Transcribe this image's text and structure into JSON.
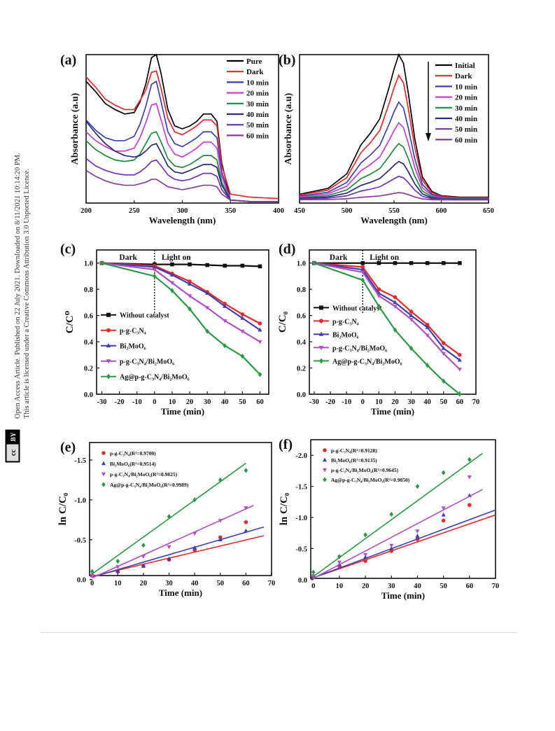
{
  "margin": {
    "line1": "Open Access Article. Published on 22 July 2021. Downloaded on 8/11/2021 10:14:20 PM.",
    "line2": "This article is licensed under a Creative Commons Attribution 3.0 Unported Licence.",
    "badge_cc": "cc",
    "badge_by": "BY"
  },
  "chart_data": [
    {
      "panel": "(a)",
      "type": "line",
      "xlabel": "Wavelength (nm)",
      "ylabel": "Absorbance (a.u)",
      "xlim": [
        200,
        400
      ],
      "xticks": [
        200,
        250,
        300,
        350,
        400
      ],
      "xtick_labels": [
        "200",
        "250",
        "300",
        "350",
        "400"
      ],
      "ylim": [
        0,
        1
      ],
      "yticks": [],
      "legend_position": "top-right",
      "series": [
        {
          "name": "Pure",
          "color": "#000000",
          "y": [
            0.82,
            0.75,
            0.67,
            0.63,
            0.6,
            0.61,
            0.68,
            0.8,
            0.98,
            1.0,
            0.87,
            0.63,
            0.52,
            0.5,
            0.52,
            0.55,
            0.6,
            0.6,
            0.55,
            0.27,
            0.02,
            0.01,
            0.01
          ]
        },
        {
          "name": "Dark",
          "color": "#e8292b",
          "y": [
            0.85,
            0.78,
            0.7,
            0.66,
            0.63,
            0.63,
            0.69,
            0.76,
            0.88,
            0.89,
            0.77,
            0.57,
            0.48,
            0.46,
            0.49,
            0.52,
            0.56,
            0.56,
            0.52,
            0.25,
            0.06,
            0.04,
            0.03
          ]
        },
        {
          "name": "10 min",
          "color": "#3b3fb5",
          "y": [
            0.56,
            0.49,
            0.44,
            0.42,
            0.42,
            0.45,
            0.53,
            0.65,
            0.8,
            0.82,
            0.68,
            0.48,
            0.4,
            0.38,
            0.41,
            0.44,
            0.48,
            0.48,
            0.44,
            0.21,
            0.02,
            0.01,
            0.01
          ]
        },
        {
          "name": "20 min",
          "color": "#c83ccf",
          "y": [
            0.48,
            0.42,
            0.38,
            0.35,
            0.35,
            0.37,
            0.44,
            0.54,
            0.66,
            0.67,
            0.56,
            0.4,
            0.33,
            0.31,
            0.34,
            0.37,
            0.41,
            0.41,
            0.37,
            0.18,
            0.02,
            0.01,
            0.01
          ]
        },
        {
          "name": "30 min",
          "color": "#1f8a3b",
          "y": [
            0.42,
            0.36,
            0.32,
            0.29,
            0.28,
            0.29,
            0.33,
            0.4,
            0.47,
            0.48,
            0.41,
            0.3,
            0.25,
            0.24,
            0.26,
            0.29,
            0.32,
            0.32,
            0.29,
            0.14,
            0.02,
            0.01,
            0.01
          ]
        },
        {
          "name": "40 min",
          "color": "#262b7a",
          "y": [
            0.55,
            0.47,
            0.4,
            0.35,
            0.32,
            0.31,
            0.32,
            0.35,
            0.39,
            0.4,
            0.34,
            0.25,
            0.21,
            0.2,
            0.22,
            0.24,
            0.26,
            0.26,
            0.24,
            0.12,
            0.02,
            0.01,
            0.01
          ]
        },
        {
          "name": "50 min",
          "color": "#6e34b7",
          "y": [
            0.3,
            0.25,
            0.22,
            0.2,
            0.19,
            0.19,
            0.21,
            0.24,
            0.28,
            0.29,
            0.25,
            0.19,
            0.16,
            0.15,
            0.16,
            0.18,
            0.2,
            0.2,
            0.18,
            0.09,
            0.02,
            0.01,
            0.01
          ]
        },
        {
          "name": "60 min",
          "color": "#8c3a9a",
          "y": [
            0.22,
            0.18,
            0.15,
            0.13,
            0.12,
            0.12,
            0.13,
            0.14,
            0.16,
            0.16,
            0.14,
            0.11,
            0.1,
            0.09,
            0.1,
            0.11,
            0.12,
            0.12,
            0.11,
            0.06,
            0.02,
            0.01,
            0.01
          ]
        }
      ],
      "x": [
        200,
        210,
        220,
        230,
        240,
        250,
        256,
        262,
        268,
        273,
        278,
        285,
        292,
        300,
        308,
        315,
        322,
        330,
        336,
        341,
        350,
        370,
        400
      ]
    },
    {
      "panel": "(b)",
      "type": "line",
      "xlabel": "Wavelength (nm)",
      "ylabel": "Absorbance (a.u)",
      "xlim": [
        450,
        650
      ],
      "xticks": [
        450,
        500,
        550,
        600,
        650
      ],
      "xtick_labels": [
        "450",
        "500",
        "550",
        "600",
        "650"
      ],
      "ylim": [
        0,
        1
      ],
      "yticks": [],
      "legend_position": "top-right",
      "series": [
        {
          "name": "Initial",
          "color": "#000000",
          "peak": 0.98
        },
        {
          "name": "Dark",
          "color": "#e8292b",
          "peak": 0.84
        },
        {
          "name": "10 min",
          "color": "#3b3fb5",
          "peak": 0.66
        },
        {
          "name": "20 min",
          "color": "#c83ccf",
          "peak": 0.52
        },
        {
          "name": "30 min",
          "color": "#1f8a3b",
          "peak": 0.38
        },
        {
          "name": "40 min",
          "color": "#262b7a",
          "peak": 0.26
        },
        {
          "name": "50 min",
          "color": "#6e34b7",
          "peak": 0.16
        },
        {
          "name": "60 min",
          "color": "#8c3a9a",
          "peak": 0.05
        }
      ],
      "x": [
        450,
        480,
        500,
        515,
        525,
        535,
        545,
        550,
        555,
        560,
        565,
        572,
        580,
        590,
        600,
        620,
        650
      ],
      "shape": [
        0.04,
        0.08,
        0.18,
        0.38,
        0.46,
        0.56,
        0.78,
        0.9,
        1.0,
        0.94,
        0.74,
        0.42,
        0.16,
        0.06,
        0.03,
        0.02,
        0.02
      ]
    },
    {
      "panel": "(c)",
      "type": "line",
      "xlabel": "Time (min)",
      "ylabel": "C/C⁰",
      "xlim": [
        -33,
        65
      ],
      "ylim": [
        0,
        1.1
      ],
      "xticks": [
        -30,
        -20,
        -10,
        0,
        10,
        20,
        30,
        40,
        50,
        60
      ],
      "xtick_labels": [
        "-30",
        "-20",
        "-10",
        "0",
        "10",
        "20",
        "30",
        "40",
        "50",
        "60"
      ],
      "yticks": [
        0,
        0.2,
        0.4,
        0.6,
        0.8,
        1.0
      ],
      "ytick_labels": [
        "0.0",
        "0.2",
        "0.4",
        "0.6",
        "0.8",
        "1.0"
      ],
      "annotations": {
        "dark": "Dark",
        "light": "Light on"
      },
      "legend_position": "bottom-left",
      "x": [
        -30,
        0,
        10,
        20,
        30,
        40,
        50,
        60
      ],
      "series": [
        {
          "name": "Without catalyst",
          "color": "#111111",
          "marker": "square",
          "values": [
            1.0,
            0.99,
            0.99,
            0.99,
            0.985,
            0.98,
            0.98,
            0.975
          ]
        },
        {
          "name": "p-g-C₃N₄",
          "color": "#e8292b",
          "marker": "circle",
          "values": [
            1.0,
            0.98,
            0.92,
            0.86,
            0.78,
            0.69,
            0.61,
            0.54
          ]
        },
        {
          "name": "Bi₂MoO₆",
          "color": "#3b3fb5",
          "marker": "triangle",
          "values": [
            1.0,
            0.97,
            0.91,
            0.84,
            0.77,
            0.67,
            0.58,
            0.49
          ]
        },
        {
          "name": "p-g-C₃N₄/Bi₂MoO₆",
          "color": "#b34fc6",
          "marker": "triangle-down",
          "values": [
            1.0,
            0.95,
            0.85,
            0.75,
            0.66,
            0.56,
            0.48,
            0.4
          ]
        },
        {
          "name": "Ag@p-g-C₃N₄/Bi₂MoO₆",
          "color": "#2a9a45",
          "marker": "diamond",
          "values": [
            1.0,
            0.9,
            0.79,
            0.65,
            0.48,
            0.37,
            0.29,
            0.15
          ]
        }
      ]
    },
    {
      "panel": "(d)",
      "type": "line",
      "xlabel": "Time (min)",
      "ylabel": "C/C₀",
      "xlim": [
        -33,
        70
      ],
      "ylim": [
        0,
        1.1
      ],
      "xticks": [
        -30,
        -20,
        -10,
        0,
        10,
        20,
        30,
        40,
        50,
        60,
        70
      ],
      "xtick_labels": [
        "-30",
        "-20",
        "-10",
        "0",
        "10",
        "20",
        "30",
        "40",
        "50",
        "60",
        "70"
      ],
      "yticks": [
        0,
        0.2,
        0.4,
        0.6,
        0.8,
        1.0
      ],
      "ytick_labels": [
        "0.0",
        "0.2",
        "0.4",
        "0.6",
        "0.8",
        "1.0"
      ],
      "annotations": {
        "dark": "Dark",
        "light": "Light on"
      },
      "legend_position": "bottom-left",
      "x": [
        -30,
        0,
        10,
        20,
        30,
        40,
        50,
        60
      ],
      "series": [
        {
          "name": "Without catalyst",
          "color": "#111111",
          "marker": "square",
          "values": [
            1.0,
            1.0,
            1.0,
            1.0,
            1.0,
            1.0,
            1.0,
            1.0
          ]
        },
        {
          "name": "p-g-C₃N₄",
          "color": "#e8292b",
          "marker": "circle",
          "values": [
            1.0,
            0.97,
            0.8,
            0.74,
            0.63,
            0.53,
            0.39,
            0.3
          ]
        },
        {
          "name": "Bi₂MoO₆",
          "color": "#3b3fb5",
          "marker": "triangle",
          "values": [
            1.0,
            0.95,
            0.77,
            0.7,
            0.6,
            0.51,
            0.35,
            0.26
          ]
        },
        {
          "name": "p-g-C₃N₄/Bi₂MoO₆",
          "color": "#b34fc6",
          "marker": "triangle-down",
          "values": [
            1.0,
            0.93,
            0.75,
            0.67,
            0.57,
            0.45,
            0.31,
            0.19
          ]
        },
        {
          "name": "Ag@p-g-C₃N₄/Bi₂MoO₆",
          "color": "#2a9a45",
          "marker": "diamond",
          "values": [
            1.0,
            0.87,
            0.67,
            0.49,
            0.35,
            0.22,
            0.1,
            0.0
          ]
        }
      ]
    },
    {
      "panel": "(e)",
      "type": "scatter",
      "xlabel": "Time (min)",
      "ylabel": "ln C/C₀",
      "xlim": [
        -1,
        70
      ],
      "ylim": [
        -0.05,
        -1.72
      ],
      "xticks": [
        0,
        10,
        20,
        30,
        40,
        50,
        60,
        70
      ],
      "xtick_labels": [
        "0",
        "10",
        "20",
        "30",
        "40",
        "50",
        "60",
        "70"
      ],
      "yticks": [
        0,
        -0.5,
        -1.0,
        -1.5
      ],
      "ytick_labels": [
        "0.0",
        "-0.5",
        "-1.0",
        "-1.5"
      ],
      "legend_position": "top-left",
      "x": [
        0,
        10,
        20,
        30,
        40,
        50,
        60
      ],
      "series": [
        {
          "name": "p-g-C₃N₄(R²=0.9700)",
          "color": "#e8292b",
          "marker": "circle",
          "values": [
            -0.05,
            -0.1,
            -0.17,
            -0.25,
            -0.37,
            -0.53,
            -0.72
          ],
          "fit": [
            [
              0,
              -0.04
            ],
            [
              67,
              -0.55
            ]
          ]
        },
        {
          "name": "Bi₂MoO₆(R²=0.9514)",
          "color": "#3b3fb5",
          "marker": "triangle",
          "values": [
            -0.05,
            -0.1,
            -0.17,
            -0.26,
            -0.4,
            -0.5,
            -0.61
          ],
          "fit": [
            [
              0,
              -0.03
            ],
            [
              67,
              -0.66
            ]
          ]
        },
        {
          "name": "p-g-C₃N₄/Bi₂MoO₆(R²=0.9825)",
          "color": "#b34fc6",
          "marker": "triangle-down",
          "values": [
            -0.05,
            -0.16,
            -0.29,
            -0.41,
            -0.58,
            -0.74,
            -0.9
          ],
          "fit": [
            [
              0,
              -0.02
            ],
            [
              63,
              -0.93
            ]
          ]
        },
        {
          "name": "Ag@p-g-C₃N₄/Bi₂MoO₆(R²=0.9989)",
          "color": "#2a9a45",
          "marker": "diamond",
          "values": [
            -0.1,
            -0.23,
            -0.43,
            -0.79,
            -1.0,
            -1.25,
            -1.37
          ],
          "fit": [
            [
              0,
              -0.07
            ],
            [
              60,
              -1.46
            ]
          ]
        }
      ]
    },
    {
      "panel": "(f)",
      "type": "scatter",
      "xlabel": "Time (min)",
      "ylabel": "ln C/C₀",
      "xlim": [
        -1,
        70
      ],
      "ylim": [
        -0.02,
        -2.25
      ],
      "xticks": [
        0,
        10,
        20,
        30,
        40,
        50,
        60,
        70
      ],
      "xtick_labels": [
        "0",
        "10",
        "20",
        "30",
        "40",
        "50",
        "60",
        "70"
      ],
      "yticks": [
        0,
        -0.5,
        -1.0,
        -1.5,
        -2.0
      ],
      "ytick_labels": [
        "0.0",
        "-0.5",
        "-1.0",
        "-1.5",
        "-2.0"
      ],
      "legend_position": "top-left",
      "x": [
        0,
        10,
        20,
        30,
        40,
        50,
        60
      ],
      "series": [
        {
          "name": "p-g-C₃N₄(R²=0.9128)",
          "color": "#e8292b",
          "marker": "circle",
          "values": [
            -0.04,
            -0.22,
            -0.3,
            -0.46,
            -0.65,
            -0.95,
            -1.2
          ],
          "fit": [
            [
              0,
              -0.03
            ],
            [
              70,
              -1.04
            ]
          ]
        },
        {
          "name": "Bi₂MoO₆(R²=0.9135)",
          "color": "#3b3fb5",
          "marker": "triangle",
          "values": [
            -0.05,
            -0.24,
            -0.36,
            -0.5,
            -0.7,
            -1.04,
            -1.35
          ],
          "fit": [
            [
              0,
              -0.03
            ],
            [
              70,
              -1.12
            ]
          ]
        },
        {
          "name": "p-g-C₃N₄/Bi₂MoO₆(R²=0.9645)",
          "color": "#b34fc6",
          "marker": "triangle-down",
          "values": [
            -0.06,
            -0.28,
            -0.4,
            -0.55,
            -0.78,
            -1.15,
            -1.65
          ],
          "fit": [
            [
              0,
              -0.02
            ],
            [
              65,
              -1.45
            ]
          ]
        },
        {
          "name": "Ag@p-g-C₃N₄/Bi₂MoO₆(R²=0.9850)",
          "color": "#2a9a45",
          "marker": "diamond",
          "values": [
            -0.12,
            -0.37,
            -0.72,
            -1.05,
            -1.5,
            -1.72,
            -1.93
          ],
          "fit": [
            [
              0,
              -0.05
            ],
            [
              65,
              -2.03
            ]
          ]
        }
      ]
    }
  ]
}
